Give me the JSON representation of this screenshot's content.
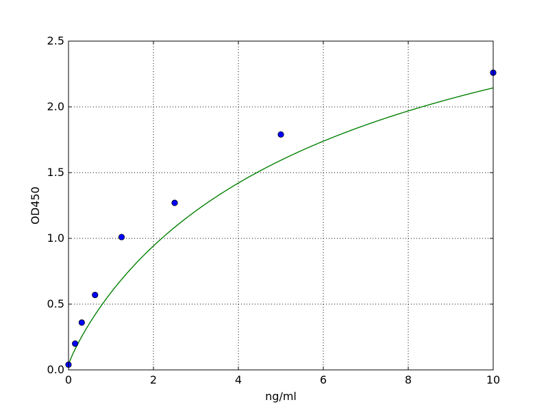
{
  "chart_data": {
    "type": "scatter",
    "title": "",
    "xlabel": "ng/ml",
    "ylabel": "OD450",
    "xlim": [
      0,
      10
    ],
    "ylim": [
      0,
      2.5
    ],
    "grid": true,
    "x_ticks": [
      0,
      2,
      4,
      6,
      8,
      10
    ],
    "x_tick_labels": [
      "0",
      "2",
      "4",
      "6",
      "8",
      "10"
    ],
    "y_ticks": [
      0,
      0.5,
      1.0,
      1.5,
      2.0,
      2.5
    ],
    "y_tick_labels": [
      "0.0",
      "0.5",
      "1.0",
      "1.5",
      "2.0",
      "2.5"
    ],
    "points": {
      "x": [
        0,
        0.156,
        0.312,
        0.625,
        1.25,
        2.5,
        5,
        10
      ],
      "y": [
        0.04,
        0.2,
        0.36,
        0.57,
        1.01,
        1.27,
        1.79,
        2.26
      ],
      "color": "#0000ff",
      "edge_color": "#000000"
    },
    "fit_curve": {
      "model": "four-parameter logistic",
      "params": {
        "A": 0.04,
        "B": 0.9,
        "C": 6.64,
        "D": 3.6
      },
      "color": "#008000"
    }
  }
}
